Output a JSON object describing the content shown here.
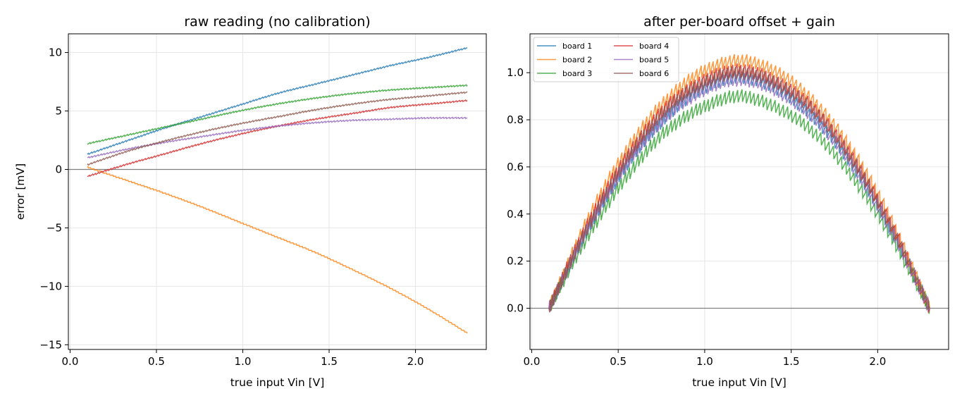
{
  "chart_data": [
    {
      "type": "line",
      "title": "raw reading (no calibration)",
      "xlabel": "true input Vin [V]",
      "ylabel": "error [mV]",
      "xlim": [
        -0.01,
        2.41
      ],
      "ylim": [
        -15.4,
        11.6
      ],
      "xticks": [
        0.0,
        0.5,
        1.0,
        1.5,
        2.0
      ],
      "xtick_labels": [
        "0.0",
        "0.5",
        "1.0",
        "1.5",
        "2.0"
      ],
      "yticks": [
        -15,
        -10,
        -5,
        0,
        5,
        10
      ],
      "ytick_labels": [
        "−15",
        "−10",
        "−5",
        "0",
        "5",
        "10"
      ],
      "grid": true,
      "reference_line_y": 0,
      "series": [
        {
          "name": "board 1",
          "color": "#1f77b4",
          "x": [
            0.1,
            0.32,
            0.54,
            0.76,
            0.98,
            1.2,
            1.42,
            1.64,
            1.86,
            2.08,
            2.3
          ],
          "y": [
            1.3,
            2.4,
            3.5,
            4.5,
            5.5,
            6.5,
            7.3,
            8.1,
            8.9,
            9.6,
            10.4
          ]
        },
        {
          "name": "board 2",
          "color": "#ff7f0e",
          "x": [
            0.1,
            0.32,
            0.54,
            0.76,
            0.98,
            1.2,
            1.42,
            1.64,
            1.86,
            2.08,
            2.3
          ],
          "y": [
            0.2,
            -0.9,
            -2.0,
            -3.2,
            -4.5,
            -5.8,
            -7.1,
            -8.6,
            -10.2,
            -12.0,
            -14.0
          ]
        },
        {
          "name": "board 3",
          "color": "#2ca02c",
          "x": [
            0.1,
            0.32,
            0.54,
            0.76,
            0.98,
            1.2,
            1.42,
            1.64,
            1.86,
            2.08,
            2.3
          ],
          "y": [
            2.2,
            2.9,
            3.6,
            4.3,
            5.0,
            5.6,
            6.1,
            6.5,
            6.8,
            7.0,
            7.2
          ]
        },
        {
          "name": "board 4",
          "color": "#d62728",
          "x": [
            0.1,
            0.32,
            0.54,
            0.76,
            0.98,
            1.2,
            1.42,
            1.64,
            1.86,
            2.08,
            2.3
          ],
          "y": [
            -0.6,
            0.4,
            1.3,
            2.2,
            3.0,
            3.7,
            4.3,
            4.8,
            5.3,
            5.6,
            5.9
          ]
        },
        {
          "name": "board 5",
          "color": "#9467bd",
          "x": [
            0.1,
            0.32,
            0.54,
            0.76,
            0.98,
            1.2,
            1.42,
            1.64,
            1.86,
            2.08,
            2.3
          ],
          "y": [
            1.0,
            1.7,
            2.3,
            2.8,
            3.3,
            3.7,
            4.0,
            4.2,
            4.3,
            4.4,
            4.4
          ]
        },
        {
          "name": "board 6",
          "color": "#8c564b",
          "x": [
            0.1,
            0.32,
            0.54,
            0.76,
            0.98,
            1.2,
            1.42,
            1.64,
            1.86,
            2.08,
            2.3
          ],
          "y": [
            0.4,
            1.5,
            2.4,
            3.2,
            3.9,
            4.5,
            5.1,
            5.6,
            6.0,
            6.3,
            6.6
          ]
        }
      ]
    },
    {
      "type": "line",
      "title": "after per-board offset + gain",
      "xlabel": "true input Vin [V]",
      "ylabel": "",
      "xlim": [
        -0.01,
        2.41
      ],
      "ylim": [
        -0.175,
        1.165
      ],
      "xticks": [
        0.0,
        0.5,
        1.0,
        1.5,
        2.0
      ],
      "xtick_labels": [
        "0.0",
        "0.5",
        "1.0",
        "1.5",
        "2.0"
      ],
      "yticks": [
        0.0,
        0.2,
        0.4,
        0.6,
        0.8,
        1.0
      ],
      "ytick_labels": [
        "0.0",
        "0.2",
        "0.4",
        "0.6",
        "0.8",
        "1.0"
      ],
      "grid": true,
      "reference_line_y": 0,
      "legend_position": "top-left",
      "legend_columns": 2,
      "series": [
        {
          "name": "board 1",
          "color": "#1f77b4",
          "x": [
            0.1,
            0.32,
            0.54,
            0.76,
            0.98,
            1.2,
            1.42,
            1.64,
            1.86,
            2.08,
            2.3
          ],
          "y": [
            0.0,
            0.33,
            0.6,
            0.8,
            0.93,
            0.98,
            0.93,
            0.8,
            0.6,
            0.33,
            0.0
          ]
        },
        {
          "name": "board 2",
          "color": "#ff7f0e",
          "x": [
            0.1,
            0.32,
            0.54,
            0.76,
            0.98,
            1.2,
            1.42,
            1.64,
            1.86,
            2.08,
            2.3
          ],
          "y": [
            0.0,
            0.37,
            0.66,
            0.87,
            1.0,
            1.05,
            1.0,
            0.87,
            0.66,
            0.37,
            0.0
          ]
        },
        {
          "name": "board 3",
          "color": "#2ca02c",
          "x": [
            0.1,
            0.32,
            0.54,
            0.76,
            0.98,
            1.2,
            1.42,
            1.64,
            1.86,
            2.08,
            2.3
          ],
          "y": [
            0.0,
            0.3,
            0.55,
            0.74,
            0.85,
            0.9,
            0.85,
            0.74,
            0.55,
            0.3,
            0.0
          ]
        },
        {
          "name": "board 4",
          "color": "#d62728",
          "x": [
            0.1,
            0.32,
            0.54,
            0.76,
            0.98,
            1.2,
            1.42,
            1.64,
            1.86,
            2.08,
            2.3
          ],
          "y": [
            0.0,
            0.35,
            0.63,
            0.84,
            0.96,
            1.01,
            0.96,
            0.84,
            0.63,
            0.35,
            0.0
          ]
        },
        {
          "name": "board 5",
          "color": "#9467bd",
          "x": [
            0.1,
            0.32,
            0.54,
            0.76,
            0.98,
            1.2,
            1.42,
            1.64,
            1.86,
            2.08,
            2.3
          ],
          "y": [
            0.0,
            0.33,
            0.6,
            0.8,
            0.92,
            0.97,
            0.92,
            0.8,
            0.6,
            0.33,
            0.0
          ]
        },
        {
          "name": "board 6",
          "color": "#8c564b",
          "x": [
            0.1,
            0.32,
            0.54,
            0.76,
            0.98,
            1.2,
            1.42,
            1.64,
            1.86,
            2.08,
            2.3
          ],
          "y": [
            0.0,
            0.34,
            0.62,
            0.83,
            0.95,
            1.0,
            0.95,
            0.83,
            0.62,
            0.34,
            0.0
          ]
        }
      ]
    }
  ]
}
